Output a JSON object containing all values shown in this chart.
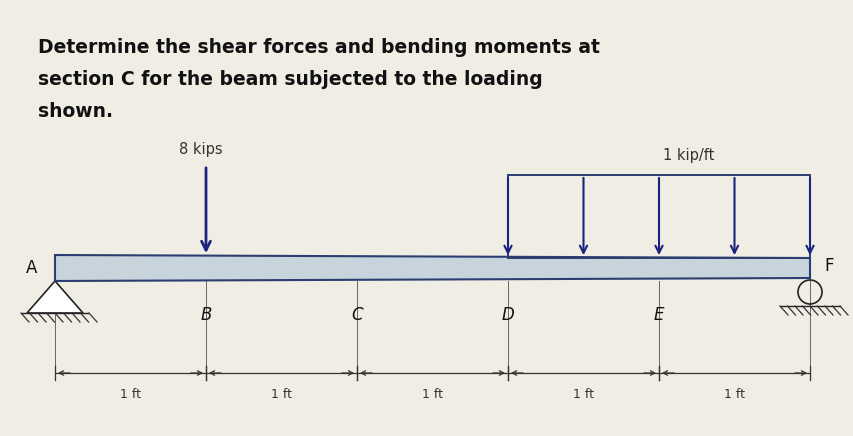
{
  "title_lines": [
    "Determine the shear forces and bending moments at",
    "section C for the beam subjected to the loading",
    "shown."
  ],
  "title_fontsize": 13.5,
  "bg_color": "#f0ede4",
  "beam_color": "#c8d4dc",
  "beam_outline_color": "#2c3e70",
  "text_color": "#1a237e",
  "arrow_color": "#1a237e",
  "dark_color": "#1a2540",
  "node_labels": [
    "A",
    "B",
    "C",
    "D",
    "E",
    "F"
  ],
  "point_load_label": "8 kips",
  "dist_load_label": "1 kip/ft",
  "dist_load_arrows_x": [
    3.0,
    3.5,
    4.0,
    4.5,
    5.0
  ],
  "dim_labels": [
    "1 ft",
    "1 ft",
    "1 ft",
    "1 ft",
    "1 ft"
  ]
}
